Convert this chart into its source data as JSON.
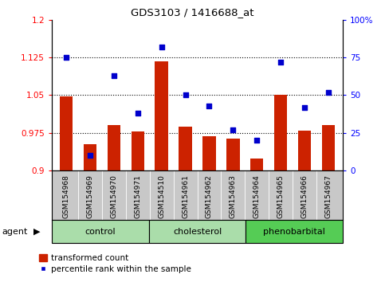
{
  "title": "GDS3103 / 1416688_at",
  "samples": [
    "GSM154968",
    "GSM154969",
    "GSM154970",
    "GSM154971",
    "GSM154510",
    "GSM154961",
    "GSM154962",
    "GSM154963",
    "GSM154964",
    "GSM154965",
    "GSM154966",
    "GSM154967"
  ],
  "transformed_count": [
    1.048,
    0.953,
    0.99,
    0.978,
    1.118,
    0.988,
    0.968,
    0.963,
    0.924,
    1.05,
    0.98,
    0.99
  ],
  "percentile_rank": [
    75,
    10,
    63,
    38,
    82,
    50,
    43,
    27,
    20,
    72,
    42,
    52
  ],
  "groups": [
    {
      "label": "control",
      "start": 0,
      "end": 4,
      "color": "#aaddaa"
    },
    {
      "label": "cholesterol",
      "start": 4,
      "end": 8,
      "color": "#aaddaa"
    },
    {
      "label": "phenobarbital",
      "start": 8,
      "end": 12,
      "color": "#55cc55"
    }
  ],
  "ylim_left": [
    0.9,
    1.2
  ],
  "ylim_right": [
    0,
    100
  ],
  "yticks_left": [
    0.9,
    0.975,
    1.05,
    1.125,
    1.2
  ],
  "yticks_right": [
    0,
    25,
    50,
    75,
    100
  ],
  "ytick_labels_left": [
    "0.9",
    "0.975",
    "1.05",
    "1.125",
    "1.2"
  ],
  "ytick_labels_right": [
    "0",
    "25",
    "50",
    "75",
    "100%"
  ],
  "hline_values": [
    0.975,
    1.05,
    1.125
  ],
  "bar_color": "#cc2200",
  "dot_color": "#0000cc",
  "bar_width": 0.55,
  "agent_label": "agent",
  "legend_bar_label": "transformed count",
  "legend_dot_label": "percentile rank within the sample",
  "group_color_light": "#aaddaa",
  "group_color_dark": "#55cc55",
  "xtick_bg_color": "#c8c8c8"
}
